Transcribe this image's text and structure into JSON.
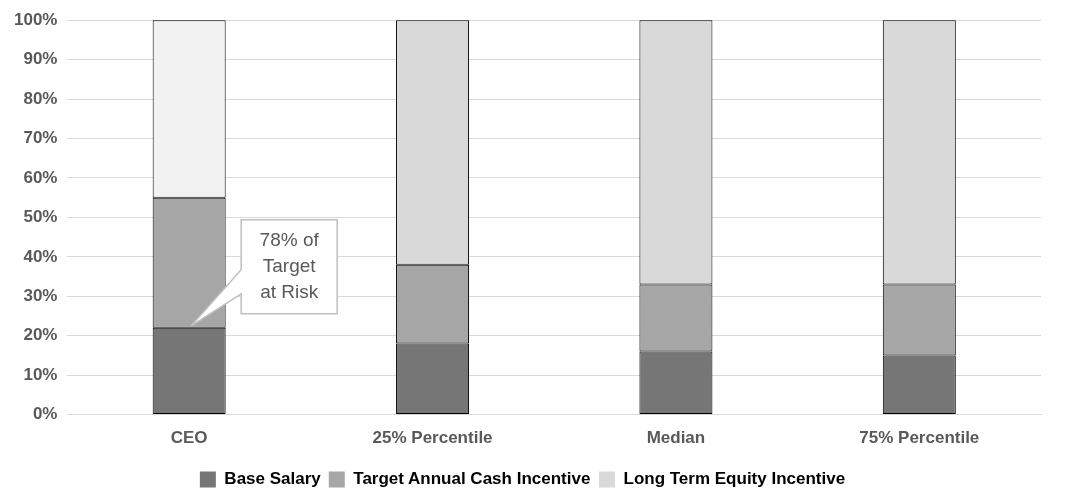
{
  "chart_data": {
    "type": "bar",
    "stacked": true,
    "categories": [
      "CEO",
      "25% Percentile",
      "Median",
      "75% Percentile"
    ],
    "series": [
      {
        "name": "Base Salary",
        "color": "#767676",
        "values": [
          22,
          18,
          16,
          15
        ]
      },
      {
        "name": "Target Annual Cash Incentive",
        "color": "#a6a6a6",
        "values": [
          33,
          20,
          17,
          18
        ]
      },
      {
        "name": "Long Term Equity Incentive",
        "color": "#d9d9d9",
        "colors": [
          "#f2f2f2",
          "#d9d9d9",
          "#d9d9d9",
          "#d9d9d9"
        ],
        "values": [
          45,
          62,
          67,
          67
        ]
      }
    ],
    "ylim": [
      0,
      100
    ],
    "yticks": [
      {
        "value": 0,
        "label": "0%"
      },
      {
        "value": 10,
        "label": "10%"
      },
      {
        "value": 20,
        "label": "20%"
      },
      {
        "value": 30,
        "label": "30%"
      },
      {
        "value": 40,
        "label": "40%"
      },
      {
        "value": 50,
        "label": "50%"
      },
      {
        "value": 60,
        "label": "60%"
      },
      {
        "value": 70,
        "label": "70%"
      },
      {
        "value": 80,
        "label": "80%"
      },
      {
        "value": 90,
        "label": "90%"
      },
      {
        "value": 100,
        "label": "100%"
      }
    ],
    "grid": "y",
    "legend": "bottom",
    "annotations": [
      "78% of Target at Risk"
    ]
  }
}
